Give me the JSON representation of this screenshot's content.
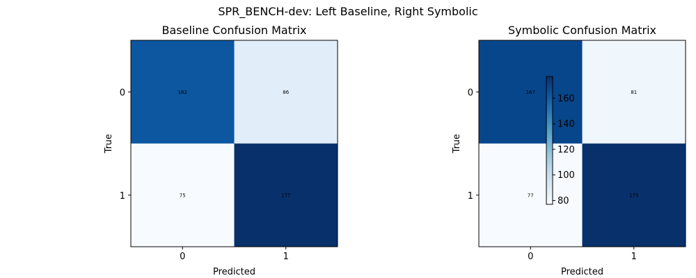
{
  "chart_data": {
    "suptitle": "SPR_BENCH-dev: Left Baseline, Right Symbolic",
    "colormap": "Blues",
    "charts": [
      {
        "type": "heatmap",
        "title": "Baseline Confusion Matrix",
        "xlabel": "Predicted",
        "ylabel": "True",
        "x_categories": [
          "0",
          "1"
        ],
        "y_categories": [
          "0",
          "1"
        ],
        "values": [
          [
            162,
            86
          ],
          [
            75,
            177
          ]
        ],
        "color_range": [
          75,
          177
        ]
      },
      {
        "type": "heatmap",
        "title": "Symbolic Confusion Matrix",
        "xlabel": "Predicted",
        "ylabel": "True",
        "x_categories": [
          "0",
          "1"
        ],
        "y_categories": [
          "0",
          "1"
        ],
        "values": [
          [
            167,
            81
          ],
          [
            77,
            175
          ]
        ],
        "color_range": [
          77,
          175
        ]
      }
    ],
    "colorbar": {
      "ticks": [
        "80",
        "100",
        "120",
        "140",
        "160"
      ],
      "range": [
        77,
        177
      ]
    }
  }
}
